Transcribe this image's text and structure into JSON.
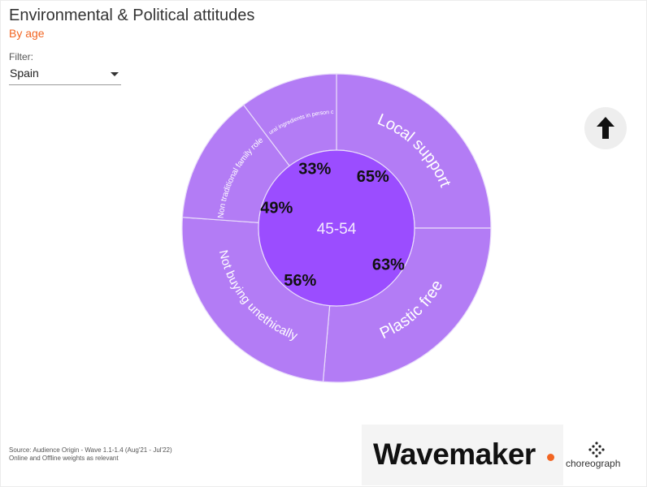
{
  "header": {
    "title": "Environmental & Political attitudes",
    "subtitle": "By age"
  },
  "filter": {
    "label": "Filter:",
    "value": "Spain"
  },
  "buttons": {
    "scroll_top_icon": "arrow-up-icon"
  },
  "footer": {
    "source_line1": "Source: Audience Origin - Wave 1.1-1.4 (Aug'21 - Jul'22)",
    "source_line2": "Online and Offline weights as relevant",
    "logo_wavemaker": "Wavemaker",
    "logo_choreograph": "choreograph"
  },
  "colors": {
    "accent": "#f26522",
    "center": "#9b4dff",
    "segment": "#b37cf5",
    "segment_stroke": "#e9dcfb"
  },
  "chart_data": {
    "type": "sunburst",
    "center_label": "45-54",
    "segments": [
      {
        "label": "Local support",
        "value": 65,
        "display": "65%"
      },
      {
        "label": "Plastic free",
        "value": 63,
        "display": "63%"
      },
      {
        "label": "Not buying unethically",
        "value": 56,
        "display": "56%"
      },
      {
        "label": "Non traditional family roles",
        "value": 49,
        "display": "49%"
      },
      {
        "label": "Natural ingredients in person care",
        "value": 33,
        "display": "33%"
      }
    ]
  }
}
